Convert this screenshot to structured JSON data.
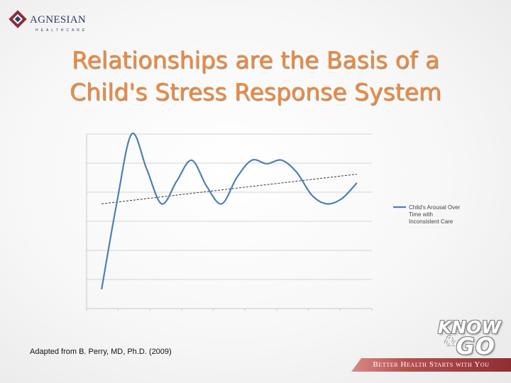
{
  "header": {
    "logo_text": "AGNESIAN",
    "logo_sub": "HEALTHCARE",
    "title_line1": "Relationships are the Basis of a",
    "title_line2": "Child's Stress Response System"
  },
  "caption": "Adapted from B. Perry, MD, Ph.D. (2009)",
  "brand": {
    "know": "KNOW",
    "and": "&",
    "go": "GO",
    "tagline": "Better Health Starts with You"
  },
  "colors": {
    "series_line": "#4f7fb4",
    "trend_line": "#333333",
    "grid": "#d4d4d4",
    "title": "#f08a3a"
  },
  "chart_data": {
    "type": "line",
    "title": "",
    "xlabel": "",
    "ylabel": "",
    "grid": true,
    "legend_position": "right",
    "xlim": [
      0,
      9.5
    ],
    "ylim": [
      0,
      10
    ],
    "series": [
      {
        "name": "Child's Arousal Over Time with Inconsistent Care",
        "x": [
          0.5,
          1.0,
          1.5,
          2.0,
          2.5,
          3.0,
          3.5,
          4.0,
          4.5,
          5.0,
          5.5,
          6.0,
          6.5,
          7.0,
          7.5,
          8.0,
          8.5,
          9.0
        ],
        "y": [
          1.1,
          6.0,
          10.0,
          8.0,
          6.0,
          7.3,
          8.5,
          7.0,
          6.0,
          7.5,
          8.5,
          8.3,
          8.5,
          7.8,
          6.5,
          6.0,
          6.3,
          7.2
        ]
      }
    ],
    "trend_line": {
      "x": [
        0.5,
        9.0
      ],
      "y": [
        6.0,
        7.7
      ]
    }
  }
}
